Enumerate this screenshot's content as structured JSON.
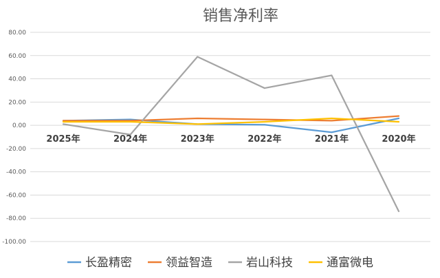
{
  "chart_data": {
    "type": "line",
    "title": "销售净利率",
    "xlabel": "",
    "ylabel": "",
    "categories": [
      "2025年",
      "2024年",
      "2023年",
      "2022年",
      "2021年",
      "2020年"
    ],
    "ylim": [
      -100,
      80
    ],
    "yticks": [
      "80.00",
      "60.00",
      "40.00",
      "20.00",
      "0.00",
      "-20.00",
      "-40.00",
      "-60.00",
      "-80.00",
      "-100.00"
    ],
    "ytick_values": [
      80,
      60,
      40,
      20,
      0,
      -20,
      -40,
      -60,
      -80,
      -100
    ],
    "grid": true,
    "legend_position": "bottom",
    "series": [
      {
        "name": "长盈精密",
        "color": "#5b9bd5",
        "values": [
          4,
          5,
          1,
          0.5,
          -6,
          6
        ]
      },
      {
        "name": "领益智造",
        "color": "#ed7d31",
        "values": [
          4,
          4,
          6,
          5,
          4,
          8
        ]
      },
      {
        "name": "岩山科技",
        "color": "#a5a5a5",
        "values": [
          1,
          -8,
          59,
          32,
          43,
          -74
        ]
      },
      {
        "name": "通富微电",
        "color": "#ffc000",
        "values": [
          3,
          3,
          1,
          3,
          6,
          3
        ]
      }
    ]
  }
}
